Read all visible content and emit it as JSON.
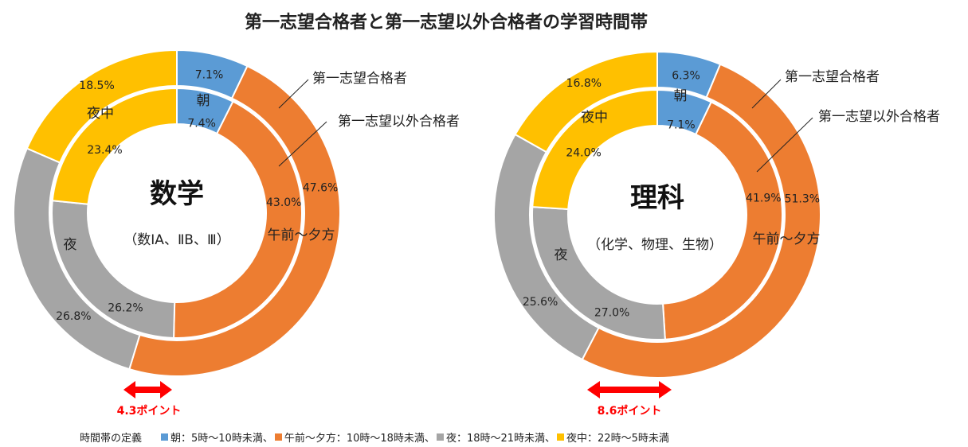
{
  "title": "第一志望合格者と第一志望以外合格者の学習時間帯",
  "colors": {
    "朝": "#5b9bd5",
    "午前〜夕方": "#ed7d31",
    "夜": "#a5a5a5",
    "夜中": "#ffc000",
    "arrow": "#ff0000"
  },
  "chart_data": [
    {
      "type": "donut",
      "title": "数学",
      "subtitle": "（数IA、ⅡB、Ⅲ）",
      "categories": [
        "朝",
        "午前〜夕方",
        "夜",
        "夜中"
      ],
      "series": [
        {
          "name": "第一志望合格者",
          "ring": "outer",
          "values": [
            7.1,
            47.6,
            26.8,
            18.5
          ],
          "labels": [
            "7.1%",
            "47.6%",
            "26.8%",
            "18.5%"
          ]
        },
        {
          "name": "第一志望以外合格者",
          "ring": "inner",
          "values": [
            7.4,
            43.0,
            26.2,
            23.4
          ],
          "labels": [
            "7.4%",
            "43.0%",
            "26.2%",
            "23.4%"
          ]
        }
      ],
      "annotation": "4.3ポイント"
    },
    {
      "type": "donut",
      "title": "理科",
      "subtitle": "（化学、物理、生物）",
      "categories": [
        "朝",
        "午前〜夕方",
        "夜",
        "夜中"
      ],
      "series": [
        {
          "name": "第一志望合格者",
          "ring": "outer",
          "values": [
            6.3,
            51.3,
            25.6,
            16.8
          ],
          "labels": [
            "6.3%",
            "51.3%",
            "25.6%",
            "16.8%"
          ]
        },
        {
          "name": "第一志望以外合格者",
          "ring": "inner",
          "values": [
            7.1,
            41.9,
            27.0,
            24.0
          ],
          "labels": [
            "7.1%",
            "41.9%",
            "27.0%",
            "24.0%"
          ]
        }
      ],
      "annotation": "8.6ポイント"
    }
  ],
  "legend": {
    "heading": "時間帯の定義",
    "items": [
      {
        "label": "朝：5時〜10時未満、"
      },
      {
        "label": "午前〜夕方：10時〜18時未満、"
      },
      {
        "label": "夜：18時〜21時未満、"
      },
      {
        "label": "夜中：22時〜5時未満"
      }
    ]
  }
}
